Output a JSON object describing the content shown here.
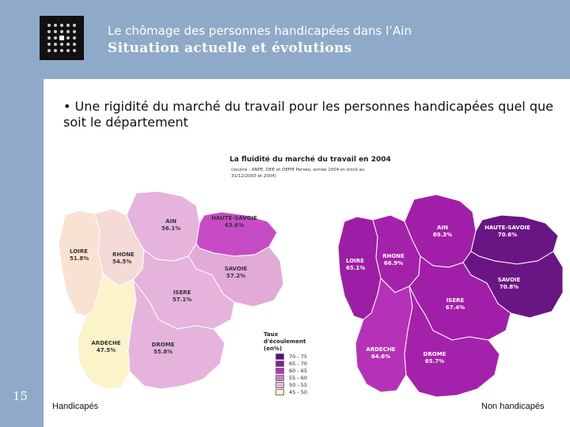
{
  "header": {
    "subtitle": "Le chômage des personnes handicapées dans l’Ain",
    "title": "Situation actuelle et évolutions"
  },
  "slide_number": "15",
  "bullet": {
    "marker": "•",
    "text": "Une rigidité du marché du travail pour les personnes handicapées quel que soit le département"
  },
  "figure": {
    "title": "La fluidité du marché du travail en 2004",
    "source": "(source : ANPE, DEE et DEFM Persée, année 2004 et stock au 31/12/2003 et 2004)"
  },
  "legend": {
    "title": "Taux d'écoulement (en%)",
    "items": [
      {
        "label": "70 - 75",
        "color": "#5a0f7a"
      },
      {
        "label": "65 - 70",
        "color": "#8a1a9c"
      },
      {
        "label": "60 - 65",
        "color": "#b532b8"
      },
      {
        "label": "55 - 60",
        "color": "#d278c9"
      },
      {
        "label": "50 - 55",
        "color": "#e6b3dd"
      },
      {
        "label": "45 - 50",
        "color": "#fbf3c9"
      }
    ]
  },
  "maps": {
    "left": {
      "caption": "Handicapés",
      "regions": [
        {
          "name": "AIN",
          "value": "56.1%",
          "color": "#e6b3dd"
        },
        {
          "name": "HAUTE-SAVOIE",
          "value": "63.6%",
          "color": "#c84bc6"
        },
        {
          "name": "LOIRE",
          "value": "51.8%",
          "color": "#f8e3d3"
        },
        {
          "name": "RHONE",
          "value": "54.5%",
          "color": "#f4dbd7"
        },
        {
          "name": "SAVOIE",
          "value": "57.2%",
          "color": "#e2aad6"
        },
        {
          "name": "ISERE",
          "value": "57.1%",
          "color": "#e6b3dd"
        },
        {
          "name": "ARDECHE",
          "value": "47.5%",
          "color": "#fbf3c9"
        },
        {
          "name": "DROME",
          "value": "55.8%",
          "color": "#e6b3dd"
        }
      ]
    },
    "right": {
      "caption": "Non handicapés",
      "regions": [
        {
          "name": "AIN",
          "value": "69.3%",
          "color": "#a11fa8"
        },
        {
          "name": "HAUTE-SAVOIE",
          "value": "70.6%",
          "color": "#6a1584"
        },
        {
          "name": "LOIRE",
          "value": "65.1%",
          "color": "#9c1ea6"
        },
        {
          "name": "RHONE",
          "value": "66.9%",
          "color": "#a422ab"
        },
        {
          "name": "SAVOIE",
          "value": "70.8%",
          "color": "#6a1584"
        },
        {
          "name": "ISERE",
          "value": "67.4%",
          "color": "#a11fa8"
        },
        {
          "name": "ARDECHE",
          "value": "64.6%",
          "color": "#b532b8"
        },
        {
          "name": "DROME",
          "value": "65.7%",
          "color": "#a422ab"
        }
      ]
    }
  }
}
